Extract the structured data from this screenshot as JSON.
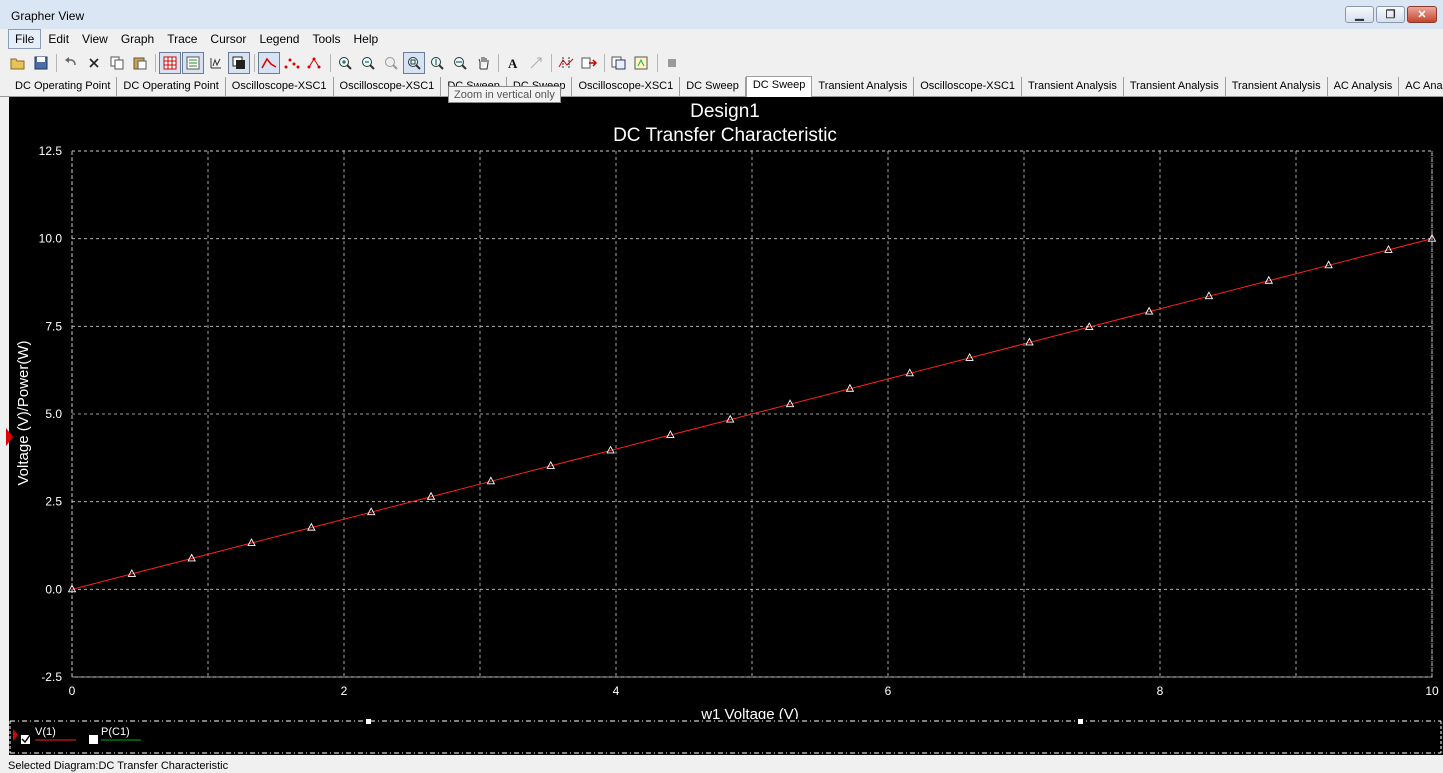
{
  "window": {
    "title": "Grapher View",
    "buttons": {
      "minimize": "▁",
      "restore": "❐",
      "close": "✕"
    }
  },
  "menu": [
    "File",
    "Edit",
    "View",
    "Graph",
    "Trace",
    "Cursor",
    "Legend",
    "Tools",
    "Help"
  ],
  "toolbar": {
    "icons": [
      "open-icon",
      "save-icon",
      "undo-icon",
      "delete-icon",
      "copy-icon",
      "paste-icon",
      "grid-icon",
      "legend-icon",
      "overview-icon",
      "select-all-icon",
      "line-icon",
      "dots-icon",
      "line-dots-icon",
      "zoom-in-icon",
      "zoom-out-icon",
      "zoom-full-icon",
      "zoom-area-icon",
      "zoom-vertical-icon",
      "zoom-horizontal-icon",
      "pan-icon",
      "text-icon",
      "label-icon",
      "cursors-icon",
      "export-icon",
      "copy-graph-icon",
      "properties-icon",
      "stop-icon"
    ]
  },
  "tabs": [
    "DC Operating Point",
    "DC Operating Point",
    "Oscilloscope-XSC1",
    "Oscilloscope-XSC1",
    "DC Sweep",
    "DC Sweep",
    "Oscilloscope-XSC1",
    "DC Sweep",
    "DC Sweep",
    "Transient Analysis",
    "Oscilloscope-XSC1",
    "Transient Analysis",
    "Transient Analysis",
    "Transient Analysis",
    "AC Analysis",
    "AC Analysis"
  ],
  "selected_tab_index": 8,
  "tooltip": "Zoom in vertical only",
  "chart_data": {
    "type": "line",
    "title": "Design1",
    "subtitle": "DC Transfer Characteristic",
    "xlabel": "w1 Voltage (V)",
    "ylabel": "Voltage (V)/Power(W)",
    "xlim": [
      0,
      10
    ],
    "ylim": [
      -2.5,
      12.5
    ],
    "xticks": [
      "0",
      "2",
      "4",
      "6",
      "8",
      "10"
    ],
    "yticks": [
      "12.5",
      "10.0",
      "7.5",
      "5.0",
      "2.5",
      "0.0",
      "-2.5"
    ],
    "grid": true,
    "series": [
      {
        "name": "V(1)",
        "color": "#ff2020",
        "marker": "triangle",
        "x": [
          0.0,
          0.44,
          0.88,
          1.32,
          1.76,
          2.2,
          2.64,
          3.08,
          3.52,
          3.96,
          4.4,
          4.84,
          5.28,
          5.72,
          6.16,
          6.6,
          7.04,
          7.48,
          7.92,
          8.36,
          8.8,
          9.24,
          9.68,
          10.0
        ],
        "y": [
          0.0,
          0.44,
          0.88,
          1.32,
          1.76,
          2.2,
          2.64,
          3.08,
          3.52,
          3.96,
          4.4,
          4.84,
          5.28,
          5.72,
          6.16,
          6.6,
          7.04,
          7.48,
          7.92,
          8.36,
          8.8,
          9.24,
          9.68,
          10.0
        ]
      }
    ],
    "legend": [
      {
        "label": "V(1)",
        "color": "#ff2020",
        "checked": true
      },
      {
        "label": "P(C1)",
        "color": "#00b000",
        "checked": false
      }
    ]
  },
  "status": "Selected Diagram:DC Transfer Characteristic"
}
